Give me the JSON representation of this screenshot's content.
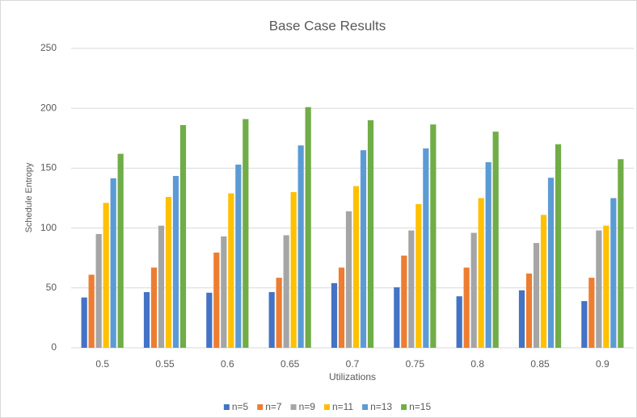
{
  "chart_data": {
    "type": "bar",
    "title": "Base Case Results",
    "x_label": "Utilizations",
    "y_label": "Schedule Entropy",
    "categories": [
      "0.5",
      "0.55",
      "0.6",
      "0.65",
      "0.7",
      "0.75",
      "0.8",
      "0.85",
      "0.9"
    ],
    "series": [
      {
        "name": "n=5",
        "color": "#4472c4",
        "values": [
          42,
          46.5,
          46,
          46.5,
          54,
          50.5,
          43,
          48,
          39
        ]
      },
      {
        "name": "n=7",
        "color": "#ed7d31",
        "values": [
          61,
          67,
          79.5,
          58.5,
          67,
          77,
          67,
          62,
          58.5
        ]
      },
      {
        "name": "n=9",
        "color": "#a5a5a5",
        "values": [
          95,
          102,
          93,
          94,
          114,
          98,
          96,
          87.5,
          98
        ]
      },
      {
        "name": "n=11",
        "color": "#ffc000",
        "values": [
          121,
          126,
          129,
          130,
          135,
          120,
          125,
          111,
          102
        ]
      },
      {
        "name": "n=13",
        "color": "#5b9bd5",
        "values": [
          141.5,
          143.5,
          153,
          169,
          165,
          166.5,
          155,
          142,
          125
        ]
      },
      {
        "name": "n=15",
        "color": "#70ad47",
        "values": [
          162,
          186,
          191,
          201,
          190,
          186.5,
          180.5,
          170,
          157.5
        ]
      }
    ],
    "ylim": [
      0,
      250
    ],
    "yticks": [
      0,
      50,
      100,
      150,
      200,
      250
    ],
    "grid": true,
    "legend": "bottom"
  }
}
